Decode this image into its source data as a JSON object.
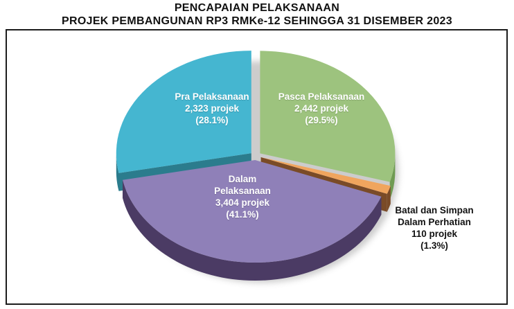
{
  "page": {
    "title_line1": "PENCAPAIAN PELAKSANAAN",
    "title_line2": "PROJEK PEMBANGUNAN RP3 RMKe-12 SEHINGGA 31 DISEMBER 2023"
  },
  "chart_data": {
    "type": "pie",
    "style": "3d-exploded",
    "title": "PENCAPAIAN PELAKSANAAN PROJEK PEMBANGUNAN RP3 RMKe-12 SEHINGGA 31 DISEMBER 2023",
    "unit": "projek",
    "direction": "clockwise",
    "start_angle": "top",
    "slices": [
      {
        "name": "Pasca Pelaksanaan",
        "value": 2442,
        "pct": 29.5,
        "color": "#9dc37e",
        "side_color": "#6f9b53",
        "label_position": "inside",
        "label_lines": [
          "Pasca Pelaksanaan",
          "2,442 projek",
          "(29.5%)"
        ]
      },
      {
        "name": "Batal dan Simpan Dalam Perhatian",
        "value": 110,
        "pct": 1.3,
        "color": "#f0a55e",
        "side_color": "#7a4b27",
        "label_position": "outside-right",
        "label_lines": [
          "Batal dan Simpan",
          "Dalam Perhatian",
          "110 projek",
          "(1.3%)"
        ]
      },
      {
        "name": "Dalam Pelaksanaan",
        "value": 3404,
        "pct": 41.1,
        "color": "#8f80b8",
        "side_color": "#4b3b64",
        "label_position": "inside",
        "label_lines": [
          "Dalam",
          "Pelaksanaan",
          "3,404 projek",
          "(41.1%)"
        ]
      },
      {
        "name": "Pra Pelaksanaan",
        "value": 2323,
        "pct": 28.1,
        "color": "#45b6d0",
        "side_color": "#2b7c8d",
        "label_position": "inside",
        "label_lines": [
          "Pra Pelaksanaan",
          "2,323 projek",
          "(28.1%)"
        ]
      }
    ]
  }
}
